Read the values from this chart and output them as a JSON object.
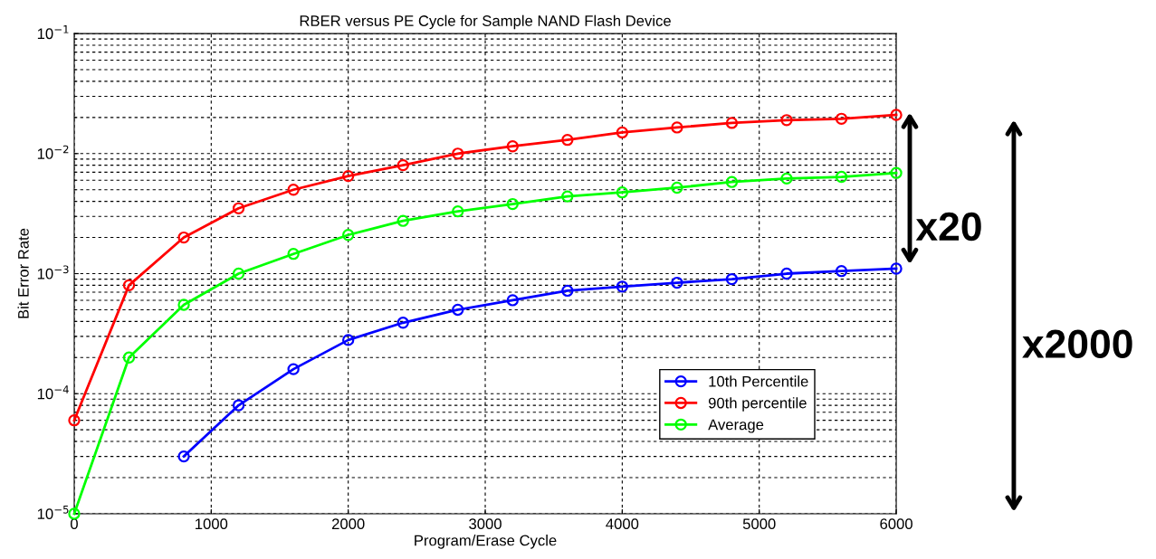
{
  "chart_data": {
    "type": "line",
    "title": "RBER versus PE Cycle for Sample NAND Flash Device",
    "xlabel": "Program/Erase Cycle",
    "ylabel": "Bit Error Rate",
    "log": "y",
    "grid": true,
    "legend": "bottom right",
    "marker": "circle",
    "line_style": "solid",
    "xlim": [
      0,
      6000
    ],
    "xticks": [
      0,
      1000,
      2000,
      3000,
      4000,
      5000,
      6000
    ],
    "ylim": [
      1e-05,
      0.1
    ],
    "yticks": [
      {
        "value": 1e-05,
        "label": "10$^{−5}$"
      },
      {
        "value": 0.0001,
        "label": "10$^{−4}$"
      },
      {
        "value": 0.001,
        "label": "10$^{−3}$"
      },
      {
        "value": 0.01,
        "label": "10$^{−2}$"
      },
      {
        "value": 0.1,
        "label": "10$^{−1}$"
      }
    ],
    "x": [
      0,
      400,
      800,
      1200,
      1600,
      2000,
      2400,
      2800,
      3200,
      3600,
      4000,
      4400,
      4800,
      5200,
      5600,
      6000
    ],
    "series": [
      {
        "name": "10th Percentile",
        "color": "#0000ff",
        "values": [
          null,
          null,
          3e-05,
          8e-05,
          0.00016,
          0.00028,
          0.00039,
          0.0005,
          0.0006,
          0.00072,
          0.00078,
          0.00084,
          0.0009,
          0.001,
          0.00105,
          0.0011
        ]
      },
      {
        "name": "90th percentile",
        "color": "#ff0000",
        "values": [
          6e-05,
          0.0008,
          0.002,
          0.0035,
          0.005,
          0.0065,
          0.008,
          0.01,
          0.0115,
          0.013,
          0.015,
          0.0165,
          0.018,
          0.019,
          0.0195,
          0.021
        ]
      },
      {
        "name": "Average",
        "color": "#00ff00",
        "values": [
          1e-05,
          0.0002,
          0.00055,
          0.001,
          0.00146,
          0.0021,
          0.00275,
          0.0033,
          0.0038,
          0.0044,
          0.00475,
          0.0052,
          0.0058,
          0.0062,
          0.0064,
          0.0069
        ]
      }
    ],
    "annotations": [
      "x20",
      "x2000"
    ]
  }
}
